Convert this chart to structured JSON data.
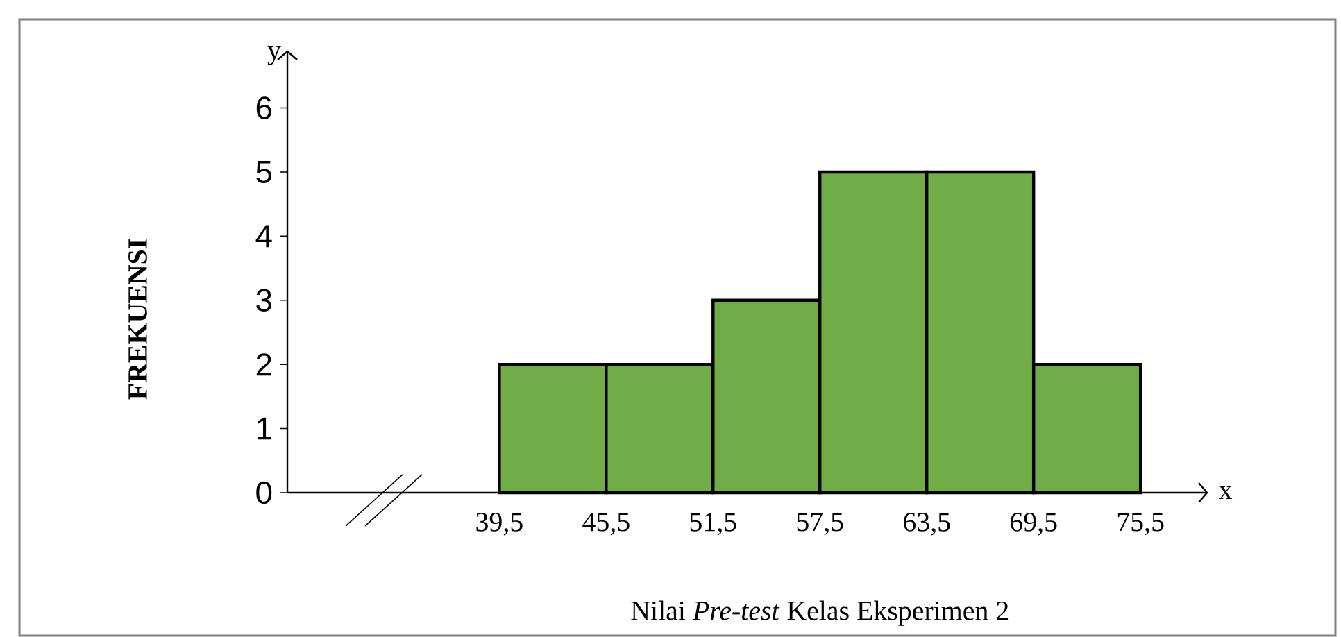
{
  "chart_data": {
    "type": "histogram",
    "xlabel": "Nilai *Pre-test* Kelas Eksperimen 2",
    "ylabel": "FREKUENSI",
    "bins": [
      39.5,
      45.5,
      51.5,
      57.5,
      63.5,
      69.5,
      75.5
    ],
    "values": [
      2,
      2,
      3,
      5,
      5,
      2
    ],
    "color": "#70ad47",
    "xlim": [
      27.6,
      79.3
    ],
    "ylim": [
      0,
      6.9
    ],
    "xticks": [
      {
        "value": 39.5,
        "label": "39,5"
      },
      {
        "value": 45.5,
        "label": "45,5"
      },
      {
        "value": 51.5,
        "label": "51,5"
      },
      {
        "value": 57.5,
        "label": "57,5"
      },
      {
        "value": 63.5,
        "label": "63,5"
      },
      {
        "value": 69.5,
        "label": "69,5"
      },
      {
        "value": 75.5,
        "label": "75,5"
      }
    ],
    "yticks": [
      0,
      1,
      2,
      3,
      4,
      5,
      6
    ],
    "annotations": [
      "x",
      "y"
    ],
    "grid": false
  }
}
